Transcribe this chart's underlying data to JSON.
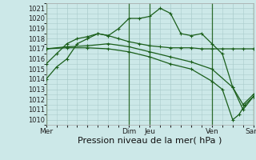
{
  "bg_color": "#cce8e8",
  "grid_color": "#aacccc",
  "line_color": "#1a5e1a",
  "marker_color": "#1a5e1a",
  "xlabel": "Pression niveau de la mer( hPa )",
  "xlabel_fontsize": 8,
  "ylim": [
    1009.5,
    1021.5
  ],
  "yticks": [
    1010,
    1011,
    1012,
    1013,
    1014,
    1015,
    1016,
    1017,
    1018,
    1019,
    1020,
    1021
  ],
  "xlim": [
    0,
    10
  ],
  "xtick_labels": [
    "Mer",
    "",
    "",
    "",
    "Dim",
    "Jeu",
    "",
    "",
    "Ven",
    "",
    "Sam"
  ],
  "xtick_positions": [
    0,
    1,
    2,
    3,
    4,
    5,
    6,
    7,
    8,
    9,
    10
  ],
  "vlines": [
    0,
    4,
    5,
    8,
    10
  ],
  "series": [
    {
      "x": [
        0,
        0.5,
        1.0,
        1.5,
        2.0,
        2.5,
        3.0,
        3.5,
        4.0,
        4.5,
        5.0,
        5.5,
        6.0,
        6.5,
        7.0,
        7.5,
        8.0,
        8.5,
        9.0,
        9.5,
        10.0
      ],
      "y": [
        1014,
        1015.2,
        1016.0,
        1017.5,
        1018.0,
        1018.5,
        1018.3,
        1019.0,
        1020.0,
        1020.0,
        1020.2,
        1021.0,
        1020.5,
        1018.5,
        1018.3,
        1018.5,
        1017.5,
        1016.5,
        1013.2,
        1011.0,
        1012.3
      ]
    },
    {
      "x": [
        0,
        0.5,
        1.0,
        1.5,
        2.0,
        2.5,
        3.0,
        3.5,
        4.0,
        4.5,
        5.0,
        5.5,
        6.0,
        6.5,
        7.0,
        7.5,
        8.0,
        8.5,
        9.0,
        9.5,
        10.0
      ],
      "y": [
        1015.5,
        1016.5,
        1017.5,
        1018.0,
        1018.2,
        1018.5,
        1018.3,
        1018.0,
        1017.7,
        1017.5,
        1017.3,
        1017.2,
        1017.1,
        1017.1,
        1017.1,
        1017.0,
        1017.0,
        1017.0,
        1017.0,
        1017.0,
        1017.0
      ]
    },
    {
      "x": [
        0,
        1.0,
        2.0,
        3.0,
        4.0,
        5.0,
        6.0,
        7.0,
        8.0,
        9.0,
        9.5,
        10.0
      ],
      "y": [
        1017.0,
        1017.2,
        1017.3,
        1017.5,
        1017.2,
        1016.7,
        1016.2,
        1015.7,
        1015.0,
        1013.2,
        1011.5,
        1012.5
      ]
    },
    {
      "x": [
        0,
        1.0,
        2.0,
        3.0,
        4.0,
        5.0,
        6.0,
        7.0,
        8.0,
        8.5,
        9.0,
        9.3,
        9.6,
        10.0
      ],
      "y": [
        1017.0,
        1017.1,
        1017.1,
        1017.0,
        1016.7,
        1016.2,
        1015.5,
        1015.0,
        1013.8,
        1013.0,
        1010.0,
        1010.5,
        1011.5,
        1012.3
      ]
    }
  ]
}
